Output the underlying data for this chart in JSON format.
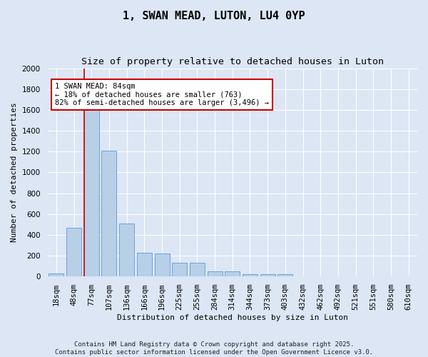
{
  "title": "1, SWAN MEAD, LUTON, LU4 0YP",
  "subtitle": "Size of property relative to detached houses in Luton",
  "xlabel": "Distribution of detached houses by size in Luton",
  "ylabel": "Number of detached properties",
  "bar_labels": [
    "18sqm",
    "48sqm",
    "77sqm",
    "107sqm",
    "136sqm",
    "166sqm",
    "196sqm",
    "225sqm",
    "255sqm",
    "284sqm",
    "314sqm",
    "344sqm",
    "373sqm",
    "403sqm",
    "432sqm",
    "462sqm",
    "492sqm",
    "521sqm",
    "551sqm",
    "580sqm",
    "610sqm"
  ],
  "bar_values": [
    30,
    470,
    1620,
    1210,
    510,
    230,
    220,
    130,
    130,
    50,
    50,
    25,
    20,
    20,
    0,
    0,
    0,
    0,
    0,
    0,
    0
  ],
  "bar_color": "#b8cfe8",
  "bar_edge_color": "#5b9bd5",
  "annotation_text_line1": "1 SWAN MEAD: 84sqm",
  "annotation_text_line2": "← 18% of detached houses are smaller (763)",
  "annotation_text_line3": "82% of semi-detached houses are larger (3,496) →",
  "annotation_box_color": "#ffffff",
  "annotation_box_edge_color": "#cc0000",
  "red_line_color": "#cc0000",
  "ylim": [
    0,
    2000
  ],
  "yticks": [
    0,
    200,
    400,
    600,
    800,
    1000,
    1200,
    1400,
    1600,
    1800,
    2000
  ],
  "background_color": "#dce6f5",
  "fig_background_color": "#dce6f5",
  "grid_color": "#ffffff",
  "footer_line1": "Contains HM Land Registry data © Crown copyright and database right 2025.",
  "footer_line2": "Contains public sector information licensed under the Open Government Licence v3.0.",
  "title_fontsize": 11,
  "subtitle_fontsize": 9.5,
  "axis_label_fontsize": 8,
  "tick_fontsize": 7.5,
  "annotation_fontsize": 7.5,
  "footer_fontsize": 6.5
}
